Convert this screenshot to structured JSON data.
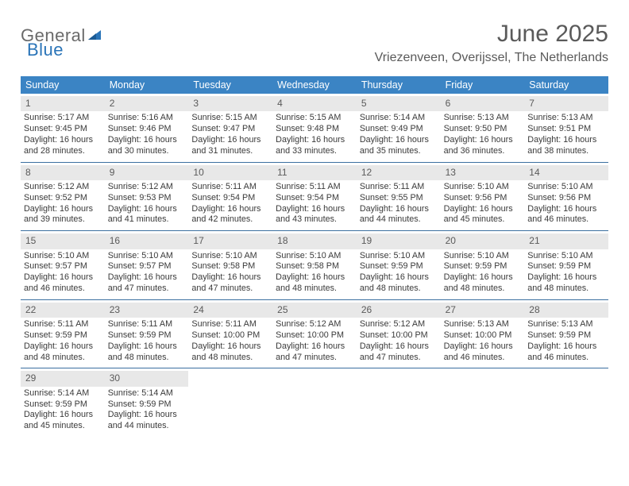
{
  "logo": {
    "text1": "General",
    "text2": "Blue"
  },
  "title": "June 2025",
  "location": "Vriezenveen, Overijssel, The Netherlands",
  "colors": {
    "header_bg": "#3b84c4",
    "header_text": "#ffffff",
    "daybar_bg": "#e8e8e8",
    "daybar_text": "#5a5a5a",
    "divider": "#3b6fa0",
    "body_text": "#3a3a3a",
    "title_text": "#5a5a5a",
    "logo_gray": "#6a6a6a",
    "logo_blue": "#2a74b8"
  },
  "weekdays": [
    "Sunday",
    "Monday",
    "Tuesday",
    "Wednesday",
    "Thursday",
    "Friday",
    "Saturday"
  ],
  "days": [
    {
      "n": "1",
      "sunrise": "Sunrise: 5:17 AM",
      "sunset": "Sunset: 9:45 PM",
      "day1": "Daylight: 16 hours",
      "day2": "and 28 minutes."
    },
    {
      "n": "2",
      "sunrise": "Sunrise: 5:16 AM",
      "sunset": "Sunset: 9:46 PM",
      "day1": "Daylight: 16 hours",
      "day2": "and 30 minutes."
    },
    {
      "n": "3",
      "sunrise": "Sunrise: 5:15 AM",
      "sunset": "Sunset: 9:47 PM",
      "day1": "Daylight: 16 hours",
      "day2": "and 31 minutes."
    },
    {
      "n": "4",
      "sunrise": "Sunrise: 5:15 AM",
      "sunset": "Sunset: 9:48 PM",
      "day1": "Daylight: 16 hours",
      "day2": "and 33 minutes."
    },
    {
      "n": "5",
      "sunrise": "Sunrise: 5:14 AM",
      "sunset": "Sunset: 9:49 PM",
      "day1": "Daylight: 16 hours",
      "day2": "and 35 minutes."
    },
    {
      "n": "6",
      "sunrise": "Sunrise: 5:13 AM",
      "sunset": "Sunset: 9:50 PM",
      "day1": "Daylight: 16 hours",
      "day2": "and 36 minutes."
    },
    {
      "n": "7",
      "sunrise": "Sunrise: 5:13 AM",
      "sunset": "Sunset: 9:51 PM",
      "day1": "Daylight: 16 hours",
      "day2": "and 38 minutes."
    },
    {
      "n": "8",
      "sunrise": "Sunrise: 5:12 AM",
      "sunset": "Sunset: 9:52 PM",
      "day1": "Daylight: 16 hours",
      "day2": "and 39 minutes."
    },
    {
      "n": "9",
      "sunrise": "Sunrise: 5:12 AM",
      "sunset": "Sunset: 9:53 PM",
      "day1": "Daylight: 16 hours",
      "day2": "and 41 minutes."
    },
    {
      "n": "10",
      "sunrise": "Sunrise: 5:11 AM",
      "sunset": "Sunset: 9:54 PM",
      "day1": "Daylight: 16 hours",
      "day2": "and 42 minutes."
    },
    {
      "n": "11",
      "sunrise": "Sunrise: 5:11 AM",
      "sunset": "Sunset: 9:54 PM",
      "day1": "Daylight: 16 hours",
      "day2": "and 43 minutes."
    },
    {
      "n": "12",
      "sunrise": "Sunrise: 5:11 AM",
      "sunset": "Sunset: 9:55 PM",
      "day1": "Daylight: 16 hours",
      "day2": "and 44 minutes."
    },
    {
      "n": "13",
      "sunrise": "Sunrise: 5:10 AM",
      "sunset": "Sunset: 9:56 PM",
      "day1": "Daylight: 16 hours",
      "day2": "and 45 minutes."
    },
    {
      "n": "14",
      "sunrise": "Sunrise: 5:10 AM",
      "sunset": "Sunset: 9:56 PM",
      "day1": "Daylight: 16 hours",
      "day2": "and 46 minutes."
    },
    {
      "n": "15",
      "sunrise": "Sunrise: 5:10 AM",
      "sunset": "Sunset: 9:57 PM",
      "day1": "Daylight: 16 hours",
      "day2": "and 46 minutes."
    },
    {
      "n": "16",
      "sunrise": "Sunrise: 5:10 AM",
      "sunset": "Sunset: 9:57 PM",
      "day1": "Daylight: 16 hours",
      "day2": "and 47 minutes."
    },
    {
      "n": "17",
      "sunrise": "Sunrise: 5:10 AM",
      "sunset": "Sunset: 9:58 PM",
      "day1": "Daylight: 16 hours",
      "day2": "and 47 minutes."
    },
    {
      "n": "18",
      "sunrise": "Sunrise: 5:10 AM",
      "sunset": "Sunset: 9:58 PM",
      "day1": "Daylight: 16 hours",
      "day2": "and 48 minutes."
    },
    {
      "n": "19",
      "sunrise": "Sunrise: 5:10 AM",
      "sunset": "Sunset: 9:59 PM",
      "day1": "Daylight: 16 hours",
      "day2": "and 48 minutes."
    },
    {
      "n": "20",
      "sunrise": "Sunrise: 5:10 AM",
      "sunset": "Sunset: 9:59 PM",
      "day1": "Daylight: 16 hours",
      "day2": "and 48 minutes."
    },
    {
      "n": "21",
      "sunrise": "Sunrise: 5:10 AM",
      "sunset": "Sunset: 9:59 PM",
      "day1": "Daylight: 16 hours",
      "day2": "and 48 minutes."
    },
    {
      "n": "22",
      "sunrise": "Sunrise: 5:11 AM",
      "sunset": "Sunset: 9:59 PM",
      "day1": "Daylight: 16 hours",
      "day2": "and 48 minutes."
    },
    {
      "n": "23",
      "sunrise": "Sunrise: 5:11 AM",
      "sunset": "Sunset: 9:59 PM",
      "day1": "Daylight: 16 hours",
      "day2": "and 48 minutes."
    },
    {
      "n": "24",
      "sunrise": "Sunrise: 5:11 AM",
      "sunset": "Sunset: 10:00 PM",
      "day1": "Daylight: 16 hours",
      "day2": "and 48 minutes."
    },
    {
      "n": "25",
      "sunrise": "Sunrise: 5:12 AM",
      "sunset": "Sunset: 10:00 PM",
      "day1": "Daylight: 16 hours",
      "day2": "and 47 minutes."
    },
    {
      "n": "26",
      "sunrise": "Sunrise: 5:12 AM",
      "sunset": "Sunset: 10:00 PM",
      "day1": "Daylight: 16 hours",
      "day2": "and 47 minutes."
    },
    {
      "n": "27",
      "sunrise": "Sunrise: 5:13 AM",
      "sunset": "Sunset: 10:00 PM",
      "day1": "Daylight: 16 hours",
      "day2": "and 46 minutes."
    },
    {
      "n": "28",
      "sunrise": "Sunrise: 5:13 AM",
      "sunset": "Sunset: 9:59 PM",
      "day1": "Daylight: 16 hours",
      "day2": "and 46 minutes."
    },
    {
      "n": "29",
      "sunrise": "Sunrise: 5:14 AM",
      "sunset": "Sunset: 9:59 PM",
      "day1": "Daylight: 16 hours",
      "day2": "and 45 minutes."
    },
    {
      "n": "30",
      "sunrise": "Sunrise: 5:14 AM",
      "sunset": "Sunset: 9:59 PM",
      "day1": "Daylight: 16 hours",
      "day2": "and 44 minutes."
    }
  ]
}
